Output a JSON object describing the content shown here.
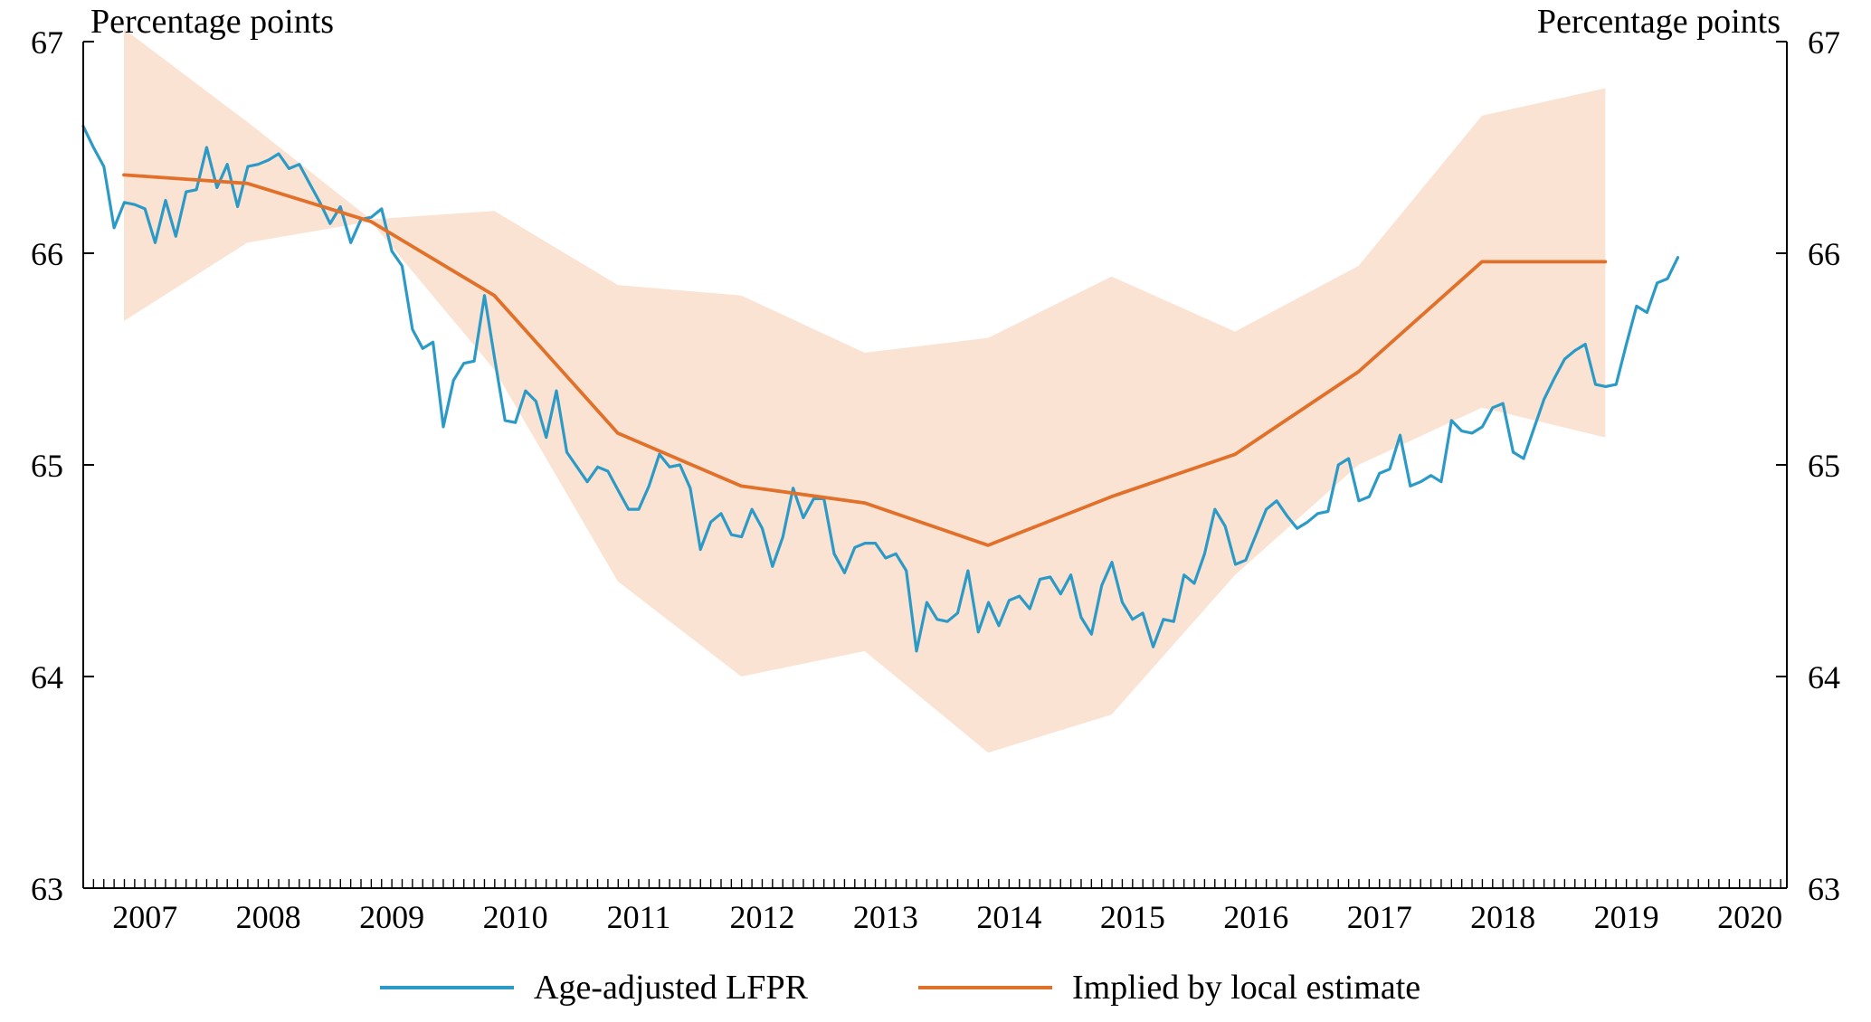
{
  "units": {
    "left": "Percentage points",
    "right": "Percentage points"
  },
  "colors": {
    "lfpr": "#2c9ac7",
    "estimate": "#e0702a",
    "band": "#fbe3d3"
  },
  "legend": [
    {
      "label": "Age-adjusted LFPR",
      "color_key": "lfpr"
    },
    {
      "label": "Implied by local estimate",
      "color_key": "estimate"
    }
  ],
  "chart_data": {
    "type": "line",
    "title": "",
    "xlabel": "",
    "ylabel": "Percentage points",
    "xlim": [
      2007.0,
      2020.8
    ],
    "ylim": [
      63,
      67
    ],
    "x_ticks": [
      "2007",
      "2008",
      "2009",
      "2010",
      "2011",
      "2012",
      "2013",
      "2014",
      "2015",
      "2016",
      "2017",
      "2018",
      "2019",
      "2020"
    ],
    "y_ticks": [
      63,
      64,
      65,
      66,
      67
    ],
    "grid": false,
    "legend_position": "bottom",
    "series": [
      {
        "name": "Age-adjusted LFPR",
        "x": [
          2007.0,
          2007.083,
          2007.167,
          2007.25,
          2007.333,
          2007.417,
          2007.5,
          2007.583,
          2007.667,
          2007.75,
          2007.833,
          2007.917,
          2008.0,
          2008.083,
          2008.167,
          2008.25,
          2008.333,
          2008.417,
          2008.5,
          2008.583,
          2008.667,
          2008.75,
          2008.833,
          2008.917,
          2009.0,
          2009.083,
          2009.167,
          2009.25,
          2009.333,
          2009.417,
          2009.5,
          2009.583,
          2009.667,
          2009.75,
          2009.833,
          2009.917,
          2010.0,
          2010.083,
          2010.167,
          2010.25,
          2010.333,
          2010.417,
          2010.5,
          2010.583,
          2010.667,
          2010.75,
          2010.833,
          2010.917,
          2011.0,
          2011.083,
          2011.167,
          2011.25,
          2011.333,
          2011.417,
          2011.5,
          2011.583,
          2011.667,
          2011.75,
          2011.833,
          2011.917,
          2012.0,
          2012.083,
          2012.167,
          2012.25,
          2012.333,
          2012.417,
          2012.5,
          2012.583,
          2012.667,
          2012.75,
          2012.833,
          2012.917,
          2013.0,
          2013.083,
          2013.167,
          2013.25,
          2013.333,
          2013.417,
          2013.5,
          2013.583,
          2013.667,
          2013.75,
          2013.833,
          2013.917,
          2014.0,
          2014.083,
          2014.167,
          2014.25,
          2014.333,
          2014.417,
          2014.5,
          2014.583,
          2014.667,
          2014.75,
          2014.833,
          2014.917,
          2015.0,
          2015.083,
          2015.167,
          2015.25,
          2015.333,
          2015.417,
          2015.5,
          2015.583,
          2015.667,
          2015.75,
          2015.833,
          2015.917,
          2016.0,
          2016.083,
          2016.167,
          2016.25,
          2016.333,
          2016.417,
          2016.5,
          2016.583,
          2016.667,
          2016.75,
          2016.833,
          2016.917,
          2017.0,
          2017.083,
          2017.167,
          2017.25,
          2017.333,
          2017.417,
          2017.5,
          2017.583,
          2017.667,
          2017.75,
          2017.833,
          2017.917,
          2018.0,
          2018.083,
          2018.167,
          2018.25,
          2018.333,
          2018.417,
          2018.5,
          2018.583,
          2018.667,
          2018.75,
          2018.833,
          2018.917,
          2019.0,
          2019.083,
          2019.167,
          2019.25,
          2019.333,
          2019.417,
          2019.5,
          2019.583,
          2019.667,
          2019.75,
          2019.833,
          2019.917
        ],
        "values": [
          66.6,
          66.5,
          66.41,
          66.12,
          66.24,
          66.23,
          66.21,
          66.05,
          66.25,
          66.08,
          66.29,
          66.3,
          66.5,
          66.31,
          66.42,
          66.22,
          66.41,
          66.42,
          66.44,
          66.47,
          66.4,
          66.42,
          66.33,
          66.24,
          66.14,
          66.22,
          66.05,
          66.16,
          66.17,
          66.21,
          66.01,
          65.94,
          65.64,
          65.55,
          65.58,
          65.18,
          65.4,
          65.48,
          65.49,
          65.8,
          65.5,
          65.21,
          65.2,
          65.35,
          65.3,
          65.13,
          65.35,
          65.06,
          64.99,
          64.92,
          64.99,
          64.97,
          64.88,
          64.79,
          64.79,
          64.9,
          65.05,
          64.99,
          65.0,
          64.89,
          64.6,
          64.73,
          64.77,
          64.67,
          64.66,
          64.79,
          64.7,
          64.52,
          64.66,
          64.89,
          64.75,
          64.84,
          64.84,
          64.58,
          64.49,
          64.61,
          64.63,
          64.63,
          64.56,
          64.58,
          64.5,
          64.12,
          64.35,
          64.27,
          64.26,
          64.3,
          64.5,
          64.21,
          64.35,
          64.24,
          64.36,
          64.38,
          64.32,
          64.46,
          64.47,
          64.39,
          64.48,
          64.28,
          64.2,
          64.43,
          64.54,
          64.35,
          64.27,
          64.3,
          64.14,
          64.27,
          64.26,
          64.48,
          64.44,
          64.58,
          64.79,
          64.71,
          64.53,
          64.55,
          64.67,
          64.79,
          64.83,
          64.76,
          64.7,
          64.73,
          64.77,
          64.78,
          65.0,
          65.03,
          64.83,
          64.85,
          64.96,
          64.98,
          65.14,
          64.9,
          64.92,
          64.95,
          64.92,
          65.21,
          65.16,
          65.15,
          65.18,
          65.27,
          65.29,
          65.06,
          65.03,
          65.17,
          65.31,
          65.41,
          65.5,
          65.54,
          65.57,
          65.38,
          65.37,
          65.38,
          65.57,
          65.75,
          65.72,
          65.86,
          65.88,
          65.98
        ]
      },
      {
        "name": "Implied by local estimate",
        "x": [
          2007.33,
          2008.33,
          2009.33,
          2010.33,
          2011.33,
          2012.33,
          2013.33,
          2014.33,
          2015.33,
          2016.33,
          2017.33,
          2018.33,
          2019.33
        ],
        "values": [
          66.37,
          66.33,
          66.15,
          65.8,
          65.15,
          64.9,
          64.82,
          64.62,
          64.85,
          65.05,
          65.44,
          65.96,
          65.96
        ]
      }
    ],
    "confidence_band": {
      "x": [
        2007.33,
        2008.33,
        2009.33,
        2010.33,
        2011.33,
        2012.33,
        2013.33,
        2014.33,
        2015.33,
        2016.33,
        2017.33,
        2018.33,
        2019.33
      ],
      "lower": [
        65.68,
        66.05,
        66.15,
        65.45,
        64.45,
        64.0,
        64.12,
        63.64,
        63.82,
        64.48,
        65.0,
        65.27,
        65.13
      ],
      "upper": [
        67.06,
        66.62,
        66.16,
        66.2,
        65.85,
        65.8,
        65.53,
        65.6,
        65.89,
        65.63,
        65.94,
        66.65,
        66.78
      ]
    }
  }
}
